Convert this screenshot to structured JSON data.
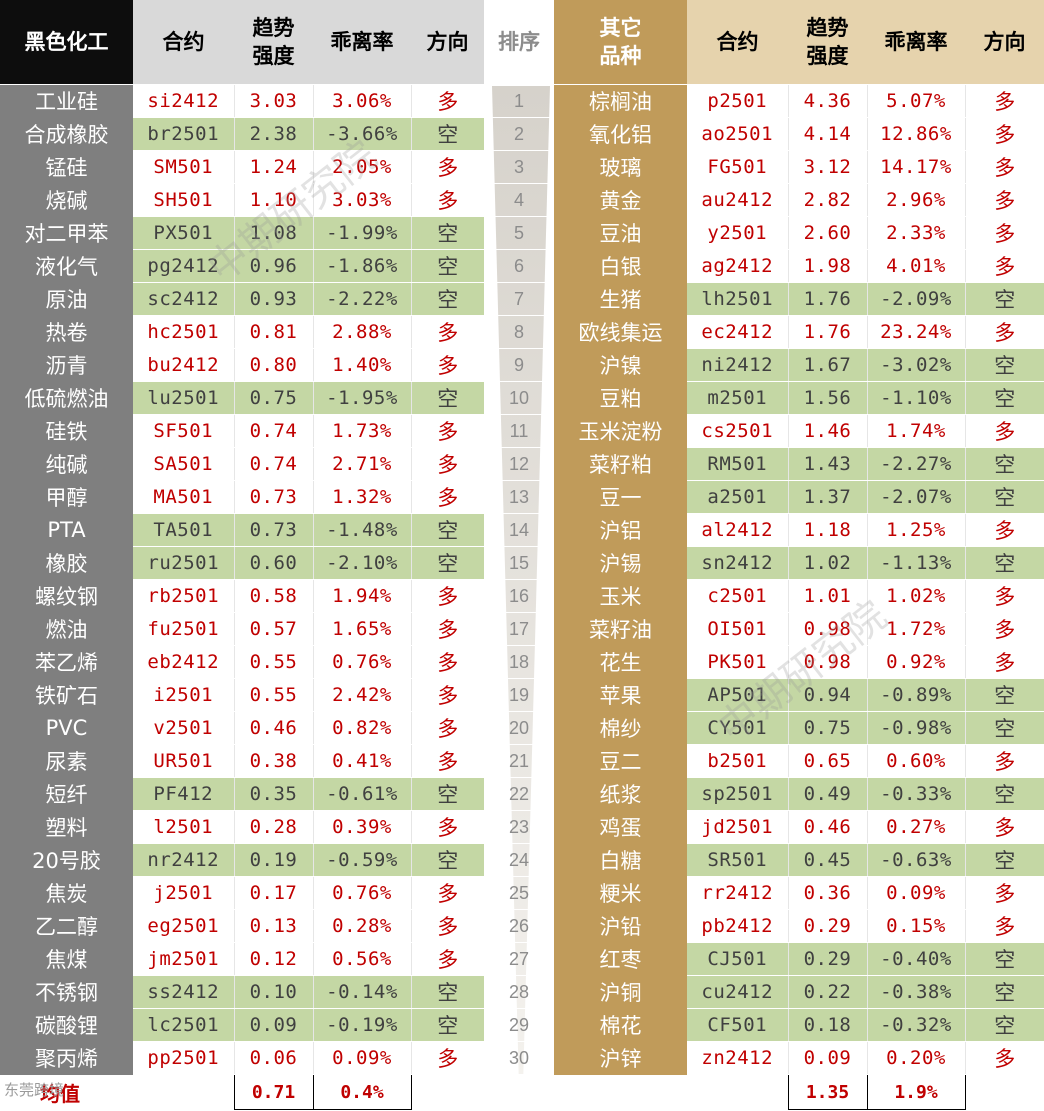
{
  "header": {
    "left_category": "黑色化工",
    "contract": "合约",
    "strength": "趋势\n强度",
    "deviation": "乖离率",
    "direction": "方向",
    "rank": "排序",
    "right_category": "其它\n品种"
  },
  "direction_long": "多",
  "direction_short": "空",
  "left_rows": [
    {
      "name": "工业硅",
      "contract": "si2412",
      "strength": "3.03",
      "deviation": "3.06%",
      "dir": "long"
    },
    {
      "name": "合成橡胶",
      "contract": "br2501",
      "strength": "2.38",
      "deviation": "-3.66%",
      "dir": "short"
    },
    {
      "name": "锰硅",
      "contract": "SM501",
      "strength": "1.24",
      "deviation": "2.05%",
      "dir": "long"
    },
    {
      "name": "烧碱",
      "contract": "SH501",
      "strength": "1.10",
      "deviation": "3.03%",
      "dir": "long"
    },
    {
      "name": "对二甲苯",
      "contract": "PX501",
      "strength": "1.08",
      "deviation": "-1.99%",
      "dir": "short"
    },
    {
      "name": "液化气",
      "contract": "pg2412",
      "strength": "0.96",
      "deviation": "-1.86%",
      "dir": "short"
    },
    {
      "name": "原油",
      "contract": "sc2412",
      "strength": "0.93",
      "deviation": "-2.22%",
      "dir": "short"
    },
    {
      "name": "热卷",
      "contract": "hc2501",
      "strength": "0.81",
      "deviation": "2.88%",
      "dir": "long"
    },
    {
      "name": "沥青",
      "contract": "bu2412",
      "strength": "0.80",
      "deviation": "1.40%",
      "dir": "long"
    },
    {
      "name": "低硫燃油",
      "contract": "lu2501",
      "strength": "0.75",
      "deviation": "-1.95%",
      "dir": "short"
    },
    {
      "name": "硅铁",
      "contract": "SF501",
      "strength": "0.74",
      "deviation": "1.73%",
      "dir": "long"
    },
    {
      "name": "纯碱",
      "contract": "SA501",
      "strength": "0.74",
      "deviation": "2.71%",
      "dir": "long"
    },
    {
      "name": "甲醇",
      "contract": "MA501",
      "strength": "0.73",
      "deviation": "1.32%",
      "dir": "long"
    },
    {
      "name": "PTA",
      "contract": "TA501",
      "strength": "0.73",
      "deviation": "-1.48%",
      "dir": "short"
    },
    {
      "name": "橡胶",
      "contract": "ru2501",
      "strength": "0.60",
      "deviation": "-2.10%",
      "dir": "short"
    },
    {
      "name": "螺纹钢",
      "contract": "rb2501",
      "strength": "0.58",
      "deviation": "1.94%",
      "dir": "long"
    },
    {
      "name": "燃油",
      "contract": "fu2501",
      "strength": "0.57",
      "deviation": "1.65%",
      "dir": "long"
    },
    {
      "name": "苯乙烯",
      "contract": "eb2412",
      "strength": "0.55",
      "deviation": "0.76%",
      "dir": "long"
    },
    {
      "name": "铁矿石",
      "contract": "i2501",
      "strength": "0.55",
      "deviation": "2.42%",
      "dir": "long"
    },
    {
      "name": "PVC",
      "contract": "v2501",
      "strength": "0.46",
      "deviation": "0.82%",
      "dir": "long"
    },
    {
      "name": "尿素",
      "contract": "UR501",
      "strength": "0.38",
      "deviation": "0.41%",
      "dir": "long"
    },
    {
      "name": "短纤",
      "contract": "PF412",
      "strength": "0.35",
      "deviation": "-0.61%",
      "dir": "short"
    },
    {
      "name": "塑料",
      "contract": "l2501",
      "strength": "0.28",
      "deviation": "0.39%",
      "dir": "long"
    },
    {
      "name": "20号胶",
      "contract": "nr2412",
      "strength": "0.19",
      "deviation": "-0.59%",
      "dir": "short"
    },
    {
      "name": "焦炭",
      "contract": "j2501",
      "strength": "0.17",
      "deviation": "0.76%",
      "dir": "long"
    },
    {
      "name": "乙二醇",
      "contract": "eg2501",
      "strength": "0.13",
      "deviation": "0.28%",
      "dir": "long"
    },
    {
      "name": "焦煤",
      "contract": "jm2501",
      "strength": "0.12",
      "deviation": "0.56%",
      "dir": "long"
    },
    {
      "name": "不锈钢",
      "contract": "ss2412",
      "strength": "0.10",
      "deviation": "-0.14%",
      "dir": "short"
    },
    {
      "name": "碳酸锂",
      "contract": "lc2501",
      "strength": "0.09",
      "deviation": "-0.19%",
      "dir": "short"
    },
    {
      "name": "聚丙烯",
      "contract": "pp2501",
      "strength": "0.06",
      "deviation": "0.09%",
      "dir": "long"
    }
  ],
  "right_rows": [
    {
      "rank": "1",
      "name": "棕榈油",
      "contract": "p2501",
      "strength": "4.36",
      "deviation": "5.07%",
      "dir": "long"
    },
    {
      "rank": "2",
      "name": "氧化铝",
      "contract": "ao2501",
      "strength": "4.14",
      "deviation": "12.86%",
      "dir": "long"
    },
    {
      "rank": "3",
      "name": "玻璃",
      "contract": "FG501",
      "strength": "3.12",
      "deviation": "14.17%",
      "dir": "long"
    },
    {
      "rank": "4",
      "name": "黄金",
      "contract": "au2412",
      "strength": "2.82",
      "deviation": "2.96%",
      "dir": "long"
    },
    {
      "rank": "5",
      "name": "豆油",
      "contract": "y2501",
      "strength": "2.60",
      "deviation": "2.33%",
      "dir": "long"
    },
    {
      "rank": "6",
      "name": "白银",
      "contract": "ag2412",
      "strength": "1.98",
      "deviation": "4.01%",
      "dir": "long"
    },
    {
      "rank": "7",
      "name": "生猪",
      "contract": "lh2501",
      "strength": "1.76",
      "deviation": "-2.09%",
      "dir": "short"
    },
    {
      "rank": "8",
      "name": "欧线集运",
      "contract": "ec2412",
      "strength": "1.76",
      "deviation": "23.24%",
      "dir": "long"
    },
    {
      "rank": "9",
      "name": "沪镍",
      "contract": "ni2412",
      "strength": "1.67",
      "deviation": "-3.02%",
      "dir": "short"
    },
    {
      "rank": "10",
      "name": "豆粕",
      "contract": "m2501",
      "strength": "1.56",
      "deviation": "-1.10%",
      "dir": "short"
    },
    {
      "rank": "11",
      "name": "玉米淀粉",
      "contract": "cs2501",
      "strength": "1.46",
      "deviation": "1.74%",
      "dir": "long"
    },
    {
      "rank": "12",
      "name": "菜籽粕",
      "contract": "RM501",
      "strength": "1.43",
      "deviation": "-2.27%",
      "dir": "short"
    },
    {
      "rank": "13",
      "name": "豆一",
      "contract": "a2501",
      "strength": "1.37",
      "deviation": "-2.07%",
      "dir": "short"
    },
    {
      "rank": "14",
      "name": "沪铝",
      "contract": "al2412",
      "strength": "1.18",
      "deviation": "1.25%",
      "dir": "long"
    },
    {
      "rank": "15",
      "name": "沪锡",
      "contract": "sn2412",
      "strength": "1.02",
      "deviation": "-1.13%",
      "dir": "short"
    },
    {
      "rank": "16",
      "name": "玉米",
      "contract": "c2501",
      "strength": "1.01",
      "deviation": "1.02%",
      "dir": "long"
    },
    {
      "rank": "17",
      "name": "菜籽油",
      "contract": "OI501",
      "strength": "0.98",
      "deviation": "1.72%",
      "dir": "long"
    },
    {
      "rank": "18",
      "name": "花生",
      "contract": "PK501",
      "strength": "0.98",
      "deviation": "0.92%",
      "dir": "long"
    },
    {
      "rank": "19",
      "name": "苹果",
      "contract": "AP501",
      "strength": "0.94",
      "deviation": "-0.89%",
      "dir": "short"
    },
    {
      "rank": "20",
      "name": "棉纱",
      "contract": "CY501",
      "strength": "0.75",
      "deviation": "-0.98%",
      "dir": "short"
    },
    {
      "rank": "21",
      "name": "豆二",
      "contract": "b2501",
      "strength": "0.65",
      "deviation": "0.60%",
      "dir": "long"
    },
    {
      "rank": "22",
      "name": "纸浆",
      "contract": "sp2501",
      "strength": "0.49",
      "deviation": "-0.33%",
      "dir": "short"
    },
    {
      "rank": "23",
      "name": "鸡蛋",
      "contract": "jd2501",
      "strength": "0.46",
      "deviation": "0.27%",
      "dir": "long"
    },
    {
      "rank": "24",
      "name": "白糖",
      "contract": "SR501",
      "strength": "0.45",
      "deviation": "-0.63%",
      "dir": "short"
    },
    {
      "rank": "25",
      "name": "粳米",
      "contract": "rr2412",
      "strength": "0.36",
      "deviation": "0.09%",
      "dir": "long"
    },
    {
      "rank": "26",
      "name": "沪铅",
      "contract": "pb2412",
      "strength": "0.29",
      "deviation": "0.15%",
      "dir": "long"
    },
    {
      "rank": "27",
      "name": "红枣",
      "contract": "CJ501",
      "strength": "0.29",
      "deviation": "-0.40%",
      "dir": "short"
    },
    {
      "rank": "28",
      "name": "沪铜",
      "contract": "cu2412",
      "strength": "0.22",
      "deviation": "-0.38%",
      "dir": "short"
    },
    {
      "rank": "29",
      "name": "棉花",
      "contract": "CF501",
      "strength": "0.18",
      "deviation": "-0.32%",
      "dir": "short"
    },
    {
      "rank": "30",
      "name": "沪锌",
      "contract": "zn2412",
      "strength": "0.09",
      "deviation": "0.20%",
      "dir": "long"
    }
  ],
  "average": {
    "label": "均值",
    "left_strength": "0.71",
    "left_deviation": "0.4%",
    "right_strength": "1.35",
    "right_deviation": "1.9%"
  },
  "watermark": "中期研究院",
  "logo_text": "东莞跨境",
  "colors": {
    "long_text": "#c00000",
    "short_bg": "#c4d7a4",
    "left_category_bg": "#7f7f7f",
    "right_category_bg": "#c09b5a"
  }
}
